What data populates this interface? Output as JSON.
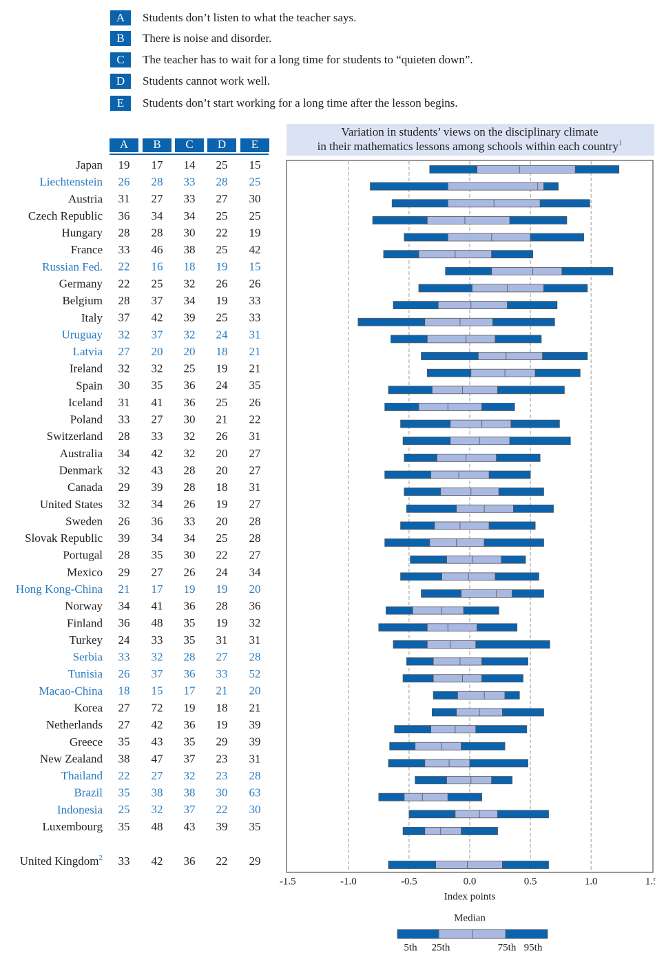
{
  "legend": [
    {
      "key": "A",
      "text": "Students don’t listen to what the teacher says."
    },
    {
      "key": "B",
      "text": "There is noise and disorder."
    },
    {
      "key": "C",
      "text": "The teacher has to wait for a long time for students to “quieten down”."
    },
    {
      "key": "D",
      "text": "Students cannot work well."
    },
    {
      "key": "E",
      "text": "Students don’t start working for a long time after the lesson begins."
    }
  ],
  "table": {
    "columns": [
      "A",
      "B",
      "C",
      "D",
      "E"
    ],
    "rows": [
      {
        "name": "Japan",
        "color": "#222222",
        "values": [
          19,
          17,
          14,
          25,
          15
        ]
      },
      {
        "name": "Liechtenstein",
        "color": "#2a7bbf",
        "values": [
          26,
          28,
          33,
          28,
          25
        ]
      },
      {
        "name": "Austria",
        "color": "#222222",
        "values": [
          31,
          27,
          33,
          27,
          30
        ]
      },
      {
        "name": "Czech Republic",
        "color": "#222222",
        "values": [
          36,
          34,
          34,
          25,
          25
        ]
      },
      {
        "name": "Hungary",
        "color": "#222222",
        "values": [
          28,
          28,
          30,
          22,
          19
        ]
      },
      {
        "name": "France",
        "color": "#222222",
        "values": [
          33,
          46,
          38,
          25,
          42
        ]
      },
      {
        "name": "Russian Fed.",
        "color": "#2a7bbf",
        "values": [
          22,
          16,
          18,
          19,
          15
        ]
      },
      {
        "name": "Germany",
        "color": "#222222",
        "values": [
          22,
          25,
          32,
          26,
          26
        ]
      },
      {
        "name": "Belgium",
        "color": "#222222",
        "values": [
          28,
          37,
          34,
          19,
          33
        ]
      },
      {
        "name": "Italy",
        "color": "#222222",
        "values": [
          37,
          42,
          39,
          25,
          33
        ]
      },
      {
        "name": "Uruguay",
        "color": "#2a7bbf",
        "values": [
          32,
          37,
          32,
          24,
          31
        ]
      },
      {
        "name": "Latvia",
        "color": "#2a7bbf",
        "values": [
          27,
          20,
          20,
          18,
          21
        ]
      },
      {
        "name": "Ireland",
        "color": "#222222",
        "values": [
          32,
          32,
          25,
          19,
          21
        ]
      },
      {
        "name": "Spain",
        "color": "#222222",
        "values": [
          30,
          35,
          36,
          24,
          35
        ]
      },
      {
        "name": "Iceland",
        "color": "#222222",
        "values": [
          31,
          41,
          36,
          25,
          26
        ]
      },
      {
        "name": "Poland",
        "color": "#222222",
        "values": [
          33,
          27,
          30,
          21,
          22
        ]
      },
      {
        "name": "Switzerland",
        "color": "#222222",
        "values": [
          28,
          33,
          32,
          26,
          31
        ]
      },
      {
        "name": "Australia",
        "color": "#222222",
        "values": [
          34,
          42,
          32,
          20,
          27
        ]
      },
      {
        "name": "Denmark",
        "color": "#222222",
        "values": [
          32,
          43,
          28,
          20,
          27
        ]
      },
      {
        "name": "Canada",
        "color": "#222222",
        "values": [
          29,
          39,
          28,
          18,
          31
        ]
      },
      {
        "name": "United States",
        "color": "#222222",
        "values": [
          32,
          34,
          26,
          19,
          27
        ]
      },
      {
        "name": "Sweden",
        "color": "#222222",
        "values": [
          26,
          36,
          33,
          20,
          28
        ]
      },
      {
        "name": "Slovak Republic",
        "color": "#222222",
        "values": [
          39,
          34,
          34,
          25,
          28
        ]
      },
      {
        "name": "Portugal",
        "color": "#222222",
        "values": [
          28,
          35,
          30,
          22,
          27
        ]
      },
      {
        "name": "Mexico",
        "color": "#222222",
        "values": [
          29,
          27,
          26,
          24,
          34
        ]
      },
      {
        "name": "Hong Kong-China",
        "color": "#2a7bbf",
        "values": [
          21,
          17,
          19,
          19,
          20
        ]
      },
      {
        "name": "Norway",
        "color": "#222222",
        "values": [
          34,
          41,
          36,
          28,
          36
        ]
      },
      {
        "name": "Finland",
        "color": "#222222",
        "values": [
          36,
          48,
          35,
          19,
          32
        ]
      },
      {
        "name": "Turkey",
        "color": "#222222",
        "values": [
          24,
          33,
          35,
          31,
          31
        ]
      },
      {
        "name": "Serbia",
        "color": "#2a7bbf",
        "values": [
          33,
          32,
          28,
          27,
          28
        ]
      },
      {
        "name": "Tunisia",
        "color": "#2a7bbf",
        "values": [
          26,
          37,
          36,
          33,
          52
        ]
      },
      {
        "name": "Macao-China",
        "color": "#2a7bbf",
        "values": [
          18,
          15,
          17,
          21,
          20
        ]
      },
      {
        "name": "Korea",
        "color": "#222222",
        "values": [
          27,
          72,
          19,
          18,
          21
        ]
      },
      {
        "name": "Netherlands",
        "color": "#222222",
        "values": [
          27,
          42,
          36,
          19,
          39
        ]
      },
      {
        "name": "Greece",
        "color": "#222222",
        "values": [
          35,
          43,
          35,
          29,
          39
        ]
      },
      {
        "name": "New Zealand",
        "color": "#222222",
        "values": [
          38,
          47,
          37,
          23,
          31
        ]
      },
      {
        "name": "Thailand",
        "color": "#2a7bbf",
        "values": [
          22,
          27,
          32,
          23,
          28
        ]
      },
      {
        "name": "Brazil",
        "color": "#2a7bbf",
        "values": [
          35,
          38,
          38,
          30,
          63
        ]
      },
      {
        "name": "Indonesia",
        "color": "#2a7bbf",
        "values": [
          25,
          32,
          37,
          22,
          30
        ]
      },
      {
        "name": "Luxembourg",
        "color": "#222222",
        "values": [
          35,
          48,
          43,
          39,
          35
        ]
      },
      {
        "name": "United Kingdom",
        "note": "2",
        "color": "#222222",
        "values": [
          33,
          42,
          36,
          22,
          29
        ]
      }
    ]
  },
  "chart_data": {
    "type": "box",
    "title": [
      "Variation in students’ views on the disciplinary climate",
      "in their mathematics lessons among schools within each country"
    ],
    "title_note": "1",
    "xlabel": "Index points",
    "xlim": [
      -1.51,
      1.51
    ],
    "xticks": [
      -1.5,
      {
        "value": -1,
        "label": "-1.0"
      },
      -0.5,
      {
        "value": 0,
        "label": "0.0"
      },
      0.5,
      {
        "value": 1,
        "label": "1.0"
      },
      1.5
    ],
    "grid": true,
    "outer_color": "#0b63ad",
    "inner_color": "#aab9e2",
    "stats": [
      [
        -0.33,
        0.06,
        0.41,
        0.87,
        1.23
      ],
      [
        -0.82,
        -0.18,
        0.56,
        0.61,
        0.73
      ],
      [
        -0.64,
        -0.18,
        0.2,
        0.58,
        0.99
      ],
      [
        -0.8,
        -0.35,
        -0.04,
        0.33,
        0.8
      ],
      [
        -0.54,
        -0.18,
        0.18,
        0.5,
        0.94
      ],
      [
        -0.71,
        -0.42,
        -0.12,
        0.18,
        0.52
      ],
      [
        -0.2,
        0.18,
        0.52,
        0.76,
        1.18
      ],
      [
        -0.42,
        0.02,
        0.31,
        0.61,
        0.97
      ],
      [
        -0.63,
        -0.26,
        0.01,
        0.31,
        0.72
      ],
      [
        -0.92,
        -0.37,
        -0.08,
        0.19,
        0.7
      ],
      [
        -0.65,
        -0.35,
        -0.03,
        0.21,
        0.59
      ],
      [
        -0.4,
        0.07,
        0.3,
        0.6,
        0.97
      ],
      [
        -0.35,
        0.01,
        0.29,
        0.54,
        0.91
      ],
      [
        -0.67,
        -0.31,
        -0.06,
        0.23,
        0.78
      ],
      [
        -0.7,
        -0.42,
        -0.18,
        0.1,
        0.37
      ],
      [
        -0.57,
        -0.16,
        0.1,
        0.34,
        0.74
      ],
      [
        -0.55,
        -0.16,
        0.08,
        0.33,
        0.83
      ],
      [
        -0.54,
        -0.27,
        -0.03,
        0.22,
        0.58
      ],
      [
        -0.7,
        -0.32,
        -0.09,
        0.16,
        0.5
      ],
      [
        -0.54,
        -0.24,
        0.01,
        0.24,
        0.61
      ],
      [
        -0.52,
        -0.11,
        0.12,
        0.36,
        0.69
      ],
      [
        -0.57,
        -0.29,
        -0.08,
        0.16,
        0.54
      ],
      [
        -0.7,
        -0.33,
        -0.11,
        0.12,
        0.61
      ],
      [
        -0.49,
        -0.19,
        0.02,
        0.26,
        0.46
      ],
      [
        -0.57,
        -0.23,
        -0.01,
        0.21,
        0.57
      ],
      [
        -0.4,
        -0.07,
        0.22,
        0.35,
        0.61
      ],
      [
        -0.69,
        -0.47,
        -0.23,
        -0.05,
        0.24
      ],
      [
        -0.75,
        -0.35,
        -0.18,
        0.06,
        0.39
      ],
      [
        -0.63,
        -0.35,
        -0.16,
        0.05,
        0.66
      ],
      [
        -0.52,
        -0.3,
        -0.08,
        0.1,
        0.48
      ],
      [
        -0.55,
        -0.3,
        -0.06,
        0.1,
        0.44
      ],
      [
        -0.3,
        -0.1,
        0.12,
        0.29,
        0.41
      ],
      [
        -0.31,
        -0.11,
        0.08,
        0.27,
        0.61
      ],
      [
        -0.62,
        -0.32,
        -0.12,
        0.05,
        0.47
      ],
      [
        -0.66,
        -0.45,
        -0.23,
        -0.07,
        0.29
      ],
      [
        -0.67,
        -0.37,
        -0.17,
        0,
        0.48
      ],
      [
        -0.45,
        -0.19,
        0.01,
        0.18,
        0.35
      ],
      [
        -0.75,
        -0.54,
        -0.39,
        -0.18,
        0.1
      ],
      [
        -0.5,
        -0.12,
        0.08,
        0.23,
        0.65
      ],
      [
        -0.55,
        -0.37,
        -0.24,
        -0.07,
        0.23
      ],
      [
        -0.67,
        -0.28,
        -0.02,
        0.27,
        0.65
      ]
    ],
    "key": {
      "title": "Median",
      "labels": [
        "5th",
        "25th",
        "75th",
        "95th"
      ]
    }
  }
}
